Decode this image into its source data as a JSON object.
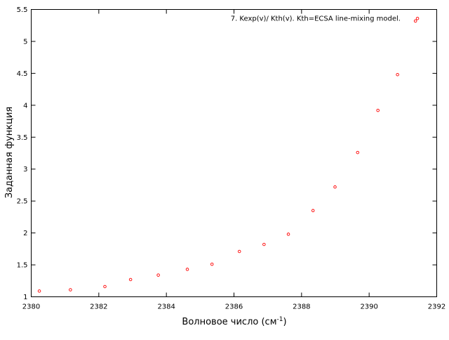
{
  "chart_data": {
    "type": "scatter",
    "xlabel_main": "Волновое число (см",
    "xlabel_sup": "-1",
    "xlabel_end": ")",
    "ylabel": "Заданная функция",
    "xlim": [
      2380,
      2392
    ],
    "ylim": [
      1,
      5.5
    ],
    "x_ticks": [
      2380,
      2382,
      2384,
      2386,
      2388,
      2390,
      2392
    ],
    "y_ticks": [
      1,
      1.5,
      2,
      2.5,
      3,
      3.5,
      4,
      4.5,
      5,
      5.5
    ],
    "x_tick_labels": [
      "2380",
      "2382",
      "2384",
      "2386",
      "2388",
      "2390",
      "2392"
    ],
    "y_tick_labels": [
      "1",
      "1.5",
      "2",
      "2.5",
      "3",
      "3.5",
      "4",
      "4.5",
      "5",
      "5.5"
    ],
    "grid": false,
    "legend_position": "top-right",
    "series": [
      {
        "name": "7. Kexp(v)/ Kth(v). Kth=ECSA line-mixing model.",
        "color": "#ff0000",
        "marker": "open-circle",
        "x": [
          2380.24,
          2381.16,
          2382.18,
          2382.94,
          2383.76,
          2384.62,
          2385.35,
          2386.16,
          2386.89,
          2387.61,
          2388.34,
          2388.99,
          2389.66,
          2390.26,
          2390.84,
          2391.37,
          2391.43
        ],
        "y": [
          1.09,
          1.11,
          1.16,
          1.27,
          1.34,
          1.43,
          1.51,
          1.71,
          1.82,
          1.98,
          2.35,
          2.72,
          3.26,
          3.92,
          4.48,
          5.32,
          5.36
        ]
      }
    ]
  }
}
